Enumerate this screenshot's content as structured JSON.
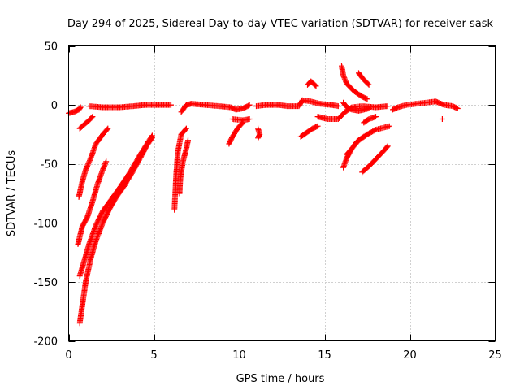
{
  "chart_data": {
    "type": "scatter",
    "title": "Day 294 of 2025, Sidereal Day-to-day VTEC variation (SDTVAR) for receiver sask",
    "xlabel": "GPS time / hours",
    "ylabel": "SDTVAR / TECUs",
    "xlim": [
      0,
      25
    ],
    "ylim": [
      -200,
      50
    ],
    "xticks": [
      "0",
      "5",
      "10",
      "15",
      "20",
      "25"
    ],
    "yticks": [
      "50",
      "0",
      "-50",
      "-100",
      "-150",
      "-200"
    ],
    "grid": true,
    "marker": "+",
    "color": "#ff0000",
    "segments": [
      {
        "name": "baseline-a",
        "points": [
          [
            0.0,
            -7
          ],
          [
            0.3,
            -6
          ],
          [
            0.6,
            -4
          ],
          [
            0.7,
            -2
          ]
        ]
      },
      {
        "name": "baseline-b",
        "points": [
          [
            1.2,
            -1
          ],
          [
            2.0,
            -2
          ],
          [
            3.0,
            -2
          ],
          [
            3.8,
            -1
          ],
          [
            4.5,
            0
          ],
          [
            5.0,
            0
          ],
          [
            5.5,
            0
          ],
          [
            6.0,
            0
          ]
        ]
      },
      {
        "name": "baseline-c",
        "points": [
          [
            6.6,
            -6
          ],
          [
            6.9,
            0
          ],
          [
            7.2,
            1
          ],
          [
            8.0,
            0
          ],
          [
            8.8,
            -1
          ],
          [
            9.5,
            -2
          ],
          [
            9.8,
            -4
          ],
          [
            10.2,
            -3
          ],
          [
            10.5,
            -1
          ],
          [
            10.6,
            0
          ]
        ]
      },
      {
        "name": "baseline-d",
        "points": [
          [
            11.0,
            -1
          ],
          [
            11.6,
            0
          ],
          [
            12.3,
            0
          ],
          [
            12.8,
            -1
          ],
          [
            13.5,
            -1
          ],
          [
            13.7,
            4
          ],
          [
            14.2,
            3
          ],
          [
            14.7,
            1
          ],
          [
            15.4,
            0
          ],
          [
            15.8,
            -1
          ]
        ]
      },
      {
        "name": "baseline-e",
        "points": [
          [
            14.6,
            -10
          ],
          [
            15.2,
            -12
          ],
          [
            15.8,
            -12
          ],
          [
            16.2,
            -6
          ],
          [
            16.6,
            -2
          ],
          [
            17.2,
            -1
          ],
          [
            18.0,
            -2
          ],
          [
            18.7,
            -1
          ]
        ]
      },
      {
        "name": "baseline-f",
        "points": [
          [
            19.0,
            -4
          ],
          [
            19.3,
            -2
          ],
          [
            19.8,
            0
          ],
          [
            20.4,
            1
          ],
          [
            21.0,
            2
          ],
          [
            21.5,
            3
          ],
          [
            22.0,
            0
          ],
          [
            22.5,
            -1
          ],
          [
            22.8,
            -3
          ]
        ]
      },
      {
        "name": "offset-10",
        "points": [
          [
            9.6,
            -12
          ],
          [
            10.2,
            -13
          ],
          [
            10.6,
            -12
          ]
        ]
      },
      {
        "name": "short-dip",
        "points": [
          [
            11.1,
            -20
          ],
          [
            11.2,
            -25
          ],
          [
            11.1,
            -28
          ]
        ]
      },
      {
        "name": "arc-1",
        "points": [
          [
            0.65,
            -20
          ],
          [
            0.8,
            -18
          ],
          [
            1.2,
            -13
          ],
          [
            1.4,
            -10
          ]
        ]
      },
      {
        "name": "arc-2",
        "points": [
          [
            0.6,
            -78
          ],
          [
            0.8,
            -65
          ],
          [
            1.0,
            -55
          ],
          [
            1.3,
            -45
          ],
          [
            1.6,
            -33
          ],
          [
            2.0,
            -25
          ],
          [
            2.3,
            -20
          ]
        ]
      },
      {
        "name": "arc-3",
        "points": [
          [
            0.55,
            -118
          ],
          [
            0.8,
            -103
          ],
          [
            1.1,
            -95
          ],
          [
            1.4,
            -82
          ],
          [
            1.7,
            -67
          ],
          [
            2.0,
            -55
          ],
          [
            2.2,
            -48
          ]
        ]
      },
      {
        "name": "arc-4",
        "points": [
          [
            0.65,
            -145
          ],
          [
            0.9,
            -133
          ],
          [
            1.2,
            -118
          ],
          [
            1.6,
            -102
          ],
          [
            2.0,
            -90
          ],
          [
            2.5,
            -80
          ],
          [
            3.0,
            -70
          ],
          [
            3.6,
            -57
          ],
          [
            4.2,
            -42
          ],
          [
            4.9,
            -26
          ]
        ]
      },
      {
        "name": "arc-5",
        "points": [
          [
            0.65,
            -185
          ],
          [
            0.8,
            -170
          ],
          [
            1.0,
            -150
          ],
          [
            1.3,
            -130
          ],
          [
            1.6,
            -115
          ],
          [
            2.0,
            -100
          ],
          [
            2.4,
            -88
          ],
          [
            2.8,
            -78
          ],
          [
            3.2,
            -70
          ],
          [
            3.7,
            -58
          ],
          [
            4.2,
            -45
          ],
          [
            4.6,
            -34
          ],
          [
            4.9,
            -28
          ]
        ]
      },
      {
        "name": "arc-6",
        "points": [
          [
            6.2,
            -89
          ],
          [
            6.25,
            -75
          ],
          [
            6.3,
            -60
          ],
          [
            6.4,
            -40
          ],
          [
            6.6,
            -25
          ],
          [
            6.9,
            -20
          ]
        ]
      },
      {
        "name": "arc-7",
        "points": [
          [
            6.5,
            -75
          ],
          [
            6.55,
            -62
          ],
          [
            6.7,
            -48
          ],
          [
            6.9,
            -37
          ],
          [
            7.0,
            -30
          ]
        ]
      },
      {
        "name": "arc-8",
        "points": [
          [
            9.4,
            -33
          ],
          [
            9.6,
            -27
          ],
          [
            9.9,
            -20
          ],
          [
            10.2,
            -15
          ]
        ]
      },
      {
        "name": "arc-9",
        "points": [
          [
            13.6,
            -27
          ],
          [
            13.9,
            -24
          ],
          [
            14.3,
            -20
          ],
          [
            14.6,
            -18
          ]
        ]
      },
      {
        "name": "arc-10",
        "points": [
          [
            14.0,
            17
          ],
          [
            14.2,
            20
          ],
          [
            14.5,
            16
          ]
        ]
      },
      {
        "name": "arc-11",
        "points": [
          [
            16.0,
            33
          ],
          [
            16.1,
            25
          ],
          [
            16.3,
            18
          ],
          [
            16.7,
            12
          ],
          [
            17.2,
            7
          ],
          [
            17.5,
            5
          ]
        ]
      },
      {
        "name": "arc-12",
        "points": [
          [
            17.0,
            27
          ],
          [
            17.2,
            23
          ],
          [
            17.4,
            20
          ],
          [
            17.6,
            17
          ]
        ]
      },
      {
        "name": "arc-13",
        "points": [
          [
            16.1,
            2
          ],
          [
            16.3,
            -2
          ],
          [
            16.6,
            -4
          ],
          [
            17.0,
            -5
          ],
          [
            17.6,
            -3
          ]
        ]
      },
      {
        "name": "arc-14",
        "points": [
          [
            16.1,
            -53
          ],
          [
            16.3,
            -45
          ],
          [
            16.6,
            -37
          ],
          [
            17.0,
            -30
          ],
          [
            17.5,
            -25
          ],
          [
            18.0,
            -21
          ],
          [
            18.8,
            -18
          ]
        ]
      },
      {
        "name": "arc-15",
        "points": [
          [
            16.3,
            -42
          ],
          [
            16.6,
            -37
          ],
          [
            16.9,
            -31
          ],
          [
            17.3,
            -27
          ]
        ]
      },
      {
        "name": "arc-16",
        "points": [
          [
            17.2,
            -57
          ],
          [
            17.6,
            -52
          ],
          [
            18.0,
            -46
          ],
          [
            18.4,
            -40
          ],
          [
            18.7,
            -35
          ]
        ]
      },
      {
        "name": "arc-17",
        "points": [
          [
            17.3,
            -15
          ],
          [
            17.6,
            -12
          ],
          [
            18.0,
            -10
          ]
        ]
      },
      {
        "name": "outlier",
        "points": [
          [
            21.9,
            -12
          ]
        ]
      }
    ]
  }
}
